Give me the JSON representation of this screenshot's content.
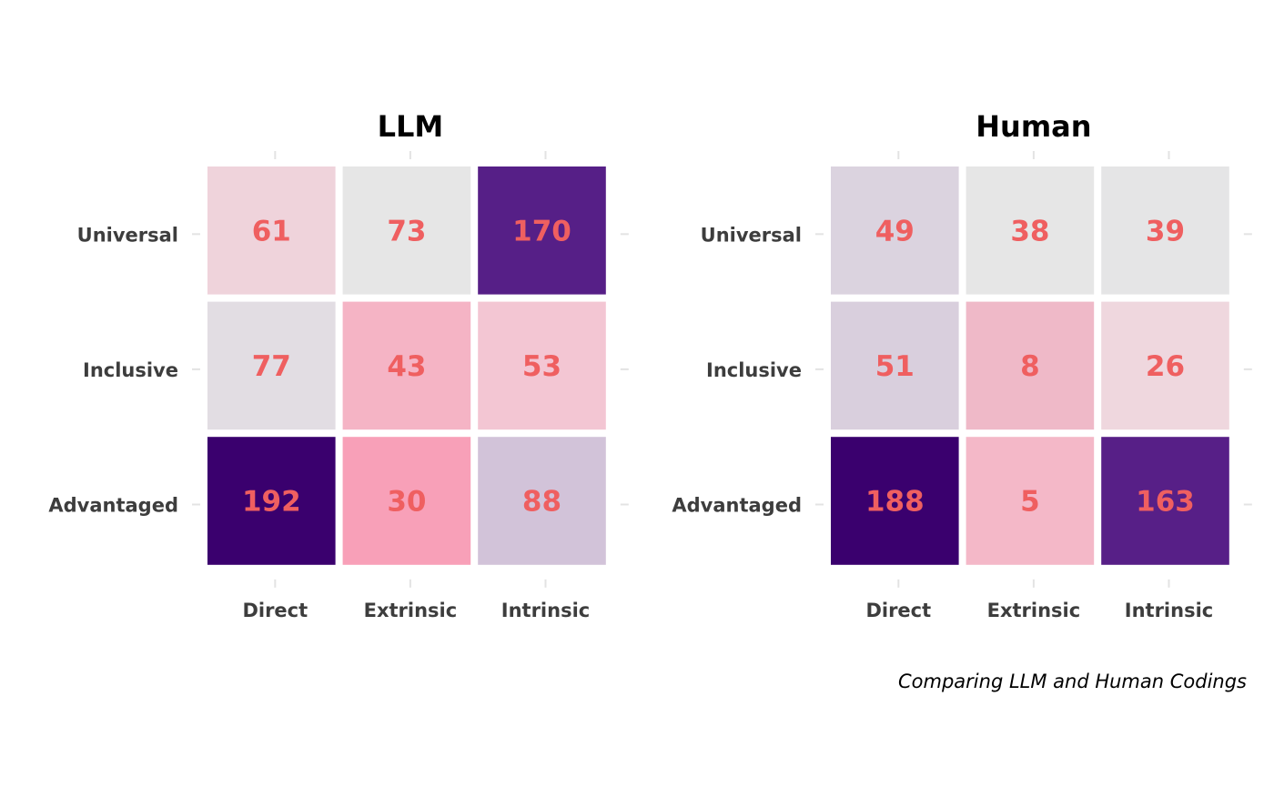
{
  "chart_data": [
    {
      "type": "heatmap",
      "title": "LLM",
      "x_categories": [
        "Direct",
        "Extrinsic",
        "Intrinsic"
      ],
      "y_categories": [
        "Universal",
        "Inclusive",
        "Advantaged"
      ],
      "values": [
        [
          61,
          73,
          170
        ],
        [
          77,
          43,
          53
        ],
        [
          192,
          30,
          88
        ]
      ],
      "cell_colors": [
        [
          "#efd3db",
          "#e6e6e6",
          "#561f87"
        ],
        [
          "#e2dde3",
          "#f5b4c5",
          "#f3c6d3"
        ],
        [
          "#3a006e",
          "#f8a0b8",
          "#d2c3d9"
        ]
      ],
      "legend": "none"
    },
    {
      "type": "heatmap",
      "title": "Human",
      "x_categories": [
        "Direct",
        "Extrinsic",
        "Intrinsic"
      ],
      "y_categories": [
        "Universal",
        "Inclusive",
        "Advantaged"
      ],
      "values": [
        [
          49,
          38,
          39
        ],
        [
          51,
          8,
          26
        ],
        [
          188,
          5,
          163
        ]
      ],
      "cell_colors": [
        [
          "#dbd3df",
          "#e6e6e6",
          "#e5e5e6"
        ],
        [
          "#d9cfdd",
          "#efb9c8",
          "#efd7de"
        ],
        [
          "#3a006e",
          "#f4b8c8",
          "#571f87"
        ]
      ],
      "legend": "none"
    }
  ],
  "caption": "Comparing LLM and Human Codings",
  "colors": {
    "value_text": "#ef5f60",
    "axis_text": "#3d3d3d",
    "tick": "#e3e3e3",
    "background": "#ffffff"
  }
}
